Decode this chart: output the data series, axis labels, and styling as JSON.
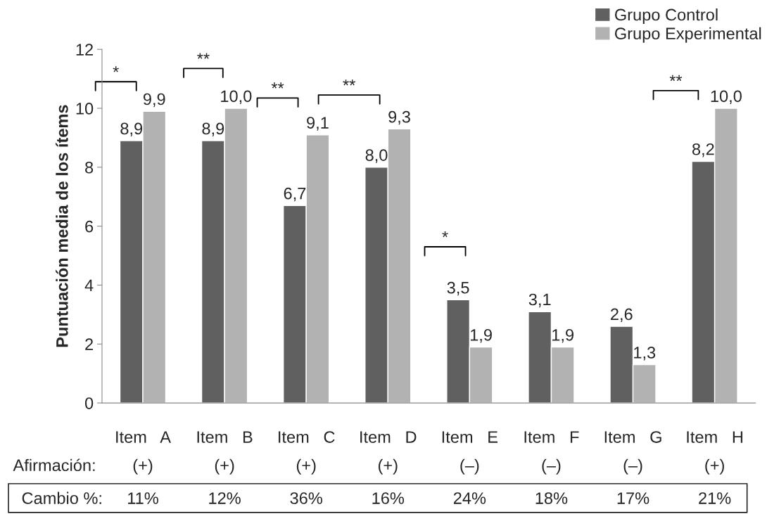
{
  "chart_data": {
    "type": "bar",
    "ylabel": "Puntuación media de los ítems",
    "categories": [
      "Item   A\n(+)\n11%",
      "Item   B\n(+)\n12%",
      "Item   C\n(+)\n36%",
      "Item   D\n(+)\n16%",
      "Item   E\n(–)\n24%",
      "Item   F\n(–)\n18%",
      "Item   G\n(–)\n17%",
      "Item   H\n(+)\n21%"
    ],
    "series": [
      {
        "name": "Grupo Control",
        "color": "#606060",
        "values": [
          8.9,
          8.9,
          6.7,
          8.0,
          3.5,
          3.1,
          2.6,
          8.2
        ],
        "value_labels": [
          "8,9",
          "8,9",
          "6,7",
          "8,0",
          "3,5",
          "3,1",
          "2,6",
          "8,2"
        ]
      },
      {
        "name": "Grupo Experimental",
        "color": "#b2b2b2",
        "values": [
          9.9,
          10.0,
          9.1,
          9.3,
          1.9,
          1.9,
          1.3,
          10.0
        ],
        "value_labels": [
          "9,9",
          "10,0",
          "9,1",
          "9,3",
          "1,9",
          "1,9",
          "1,3",
          "10,0"
        ]
      }
    ],
    "ylim": [
      0,
      12
    ],
    "yticks": [
      0,
      2,
      4,
      6,
      8,
      10,
      12
    ],
    "grid": false,
    "legend": "top right",
    "annotations": [
      "Afirmación:",
      "Cambio %:",
      "*",
      "**",
      "**",
      "**",
      "*",
      "**"
    ]
  }
}
